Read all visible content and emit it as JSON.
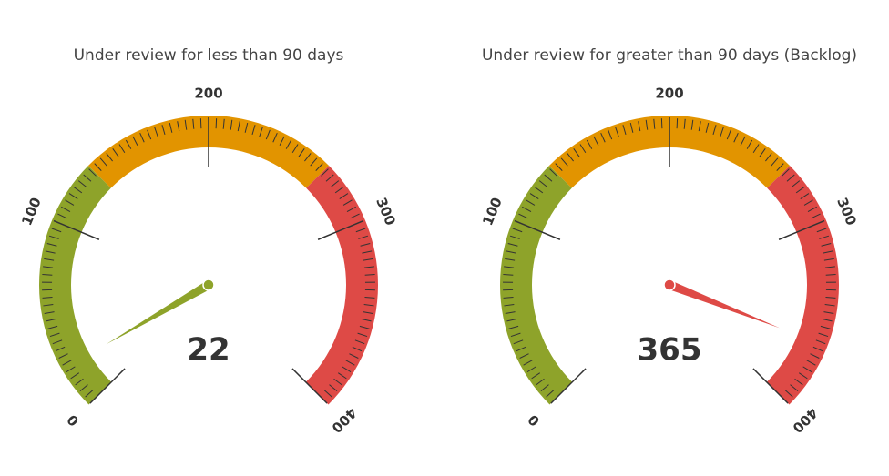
{
  "chart_data": [
    {
      "type": "gauge",
      "title": "Under review for less than 90 days",
      "value": 22,
      "range": [
        0,
        400
      ],
      "ticks": [
        0,
        100,
        200,
        300,
        400
      ],
      "minor_ticks_per_major": 25,
      "bands": [
        {
          "from": 0,
          "to": 133,
          "color": "#8ea32a"
        },
        {
          "from": 133,
          "to": 267,
          "color": "#e29400"
        },
        {
          "from": 267,
          "to": 400,
          "color": "#de4a46"
        }
      ]
    },
    {
      "type": "gauge",
      "title": "Under review for greater than 90 days (Backlog)",
      "value": 365,
      "range": [
        0,
        400
      ],
      "ticks": [
        0,
        100,
        200,
        300,
        400
      ],
      "minor_ticks_per_major": 25,
      "bands": [
        {
          "from": 0,
          "to": 133,
          "color": "#8ea32a"
        },
        {
          "from": 133,
          "to": 267,
          "color": "#e29400"
        },
        {
          "from": 267,
          "to": 400,
          "color": "#de4a46"
        }
      ]
    }
  ]
}
